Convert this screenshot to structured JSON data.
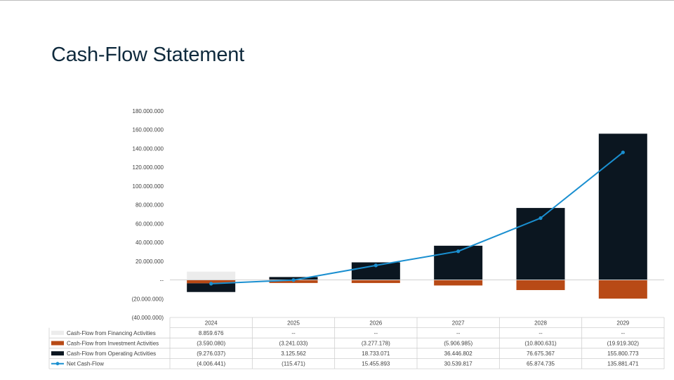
{
  "slide": {
    "title": "Cash-Flow Statement"
  },
  "chart_data": {
    "type": "bar",
    "stacked": true,
    "combo_line": true,
    "categories": [
      "2024",
      "2025",
      "2026",
      "2027",
      "2028",
      "2029"
    ],
    "ylim": [
      -40000000,
      180000000
    ],
    "ytick_values": [
      180000000,
      160000000,
      140000000,
      120000000,
      100000000,
      80000000,
      60000000,
      40000000,
      20000000,
      0,
      -20000000,
      -40000000
    ],
    "ytick_labels": [
      "180.000.000",
      "160.000.000",
      "140.000.000",
      "120.000.000",
      "100.000.000",
      "80.000.000",
      "60.000.000",
      "40.000.000",
      "20.000.000",
      "--",
      "(20.000.000)",
      "(40.000.000)"
    ],
    "grid": false,
    "legend_placement": "data-table",
    "series": [
      {
        "name": "Cash-Flow from Financing Activities",
        "kind": "bar",
        "color": "#ececec",
        "values": [
          8859676,
          0,
          0,
          0,
          0,
          0
        ],
        "labels": [
          "8.859.676",
          "--",
          "--",
          "--",
          "--",
          "--"
        ]
      },
      {
        "name": "Cash-Flow from Investment Activities",
        "kind": "bar",
        "color": "#b84a16",
        "values": [
          -3590080,
          -3241033,
          -3277178,
          -5906985,
          -10800631,
          -19919302
        ],
        "labels": [
          "(3.590.080)",
          "(3.241.033)",
          "(3.277.178)",
          "(5.906.985)",
          "(10.800.631)",
          "(19.919.302)"
        ]
      },
      {
        "name": "Cash-Flow from Operating Activities",
        "kind": "bar",
        "color": "#0b1620",
        "values": [
          -9276037,
          3125562,
          18733071,
          36446802,
          76675367,
          155800773
        ],
        "labels": [
          "(9.276.037)",
          "3.125.562",
          "18.733.071",
          "36.446.802",
          "76.675.367",
          "155.800.773"
        ]
      },
      {
        "name": "Net Cash-Flow",
        "kind": "line",
        "color": "#1a8fd0",
        "values": [
          -4006441,
          -115471,
          15455893,
          30539817,
          65874735,
          135881471
        ],
        "labels": [
          "(4.006.441)",
          "(115.471)",
          "15.455.893",
          "30.539.817",
          "65.874.735",
          "135.881.471"
        ]
      }
    ]
  }
}
